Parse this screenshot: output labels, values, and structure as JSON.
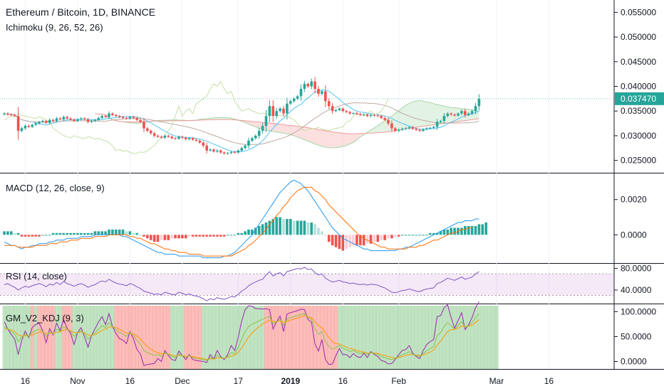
{
  "chart_data": {
    "type": "candlestick",
    "symbol_title": "Ethereum / Bitcoin, 1D, BINANCE",
    "colors": {
      "up": "#26a69a",
      "down": "#ef5350",
      "accent": "#26a69a"
    },
    "time_axis": {
      "ticks": [
        {
          "i": 6,
          "label": "16"
        },
        {
          "i": 21,
          "label": "Nov"
        },
        {
          "i": 36,
          "label": "16"
        },
        {
          "i": 51,
          "label": "Dec"
        },
        {
          "i": 67,
          "label": "17"
        },
        {
          "i": 82,
          "label": "2019"
        },
        {
          "i": 97,
          "label": "16"
        },
        {
          "i": 113,
          "label": "Feb"
        },
        {
          "i": 141,
          "label": "Mar"
        },
        {
          "i": 156,
          "label": "16"
        }
      ]
    },
    "price_panel": {
      "indicator_label": "Ichimoku (9, 26, 52, 26)",
      "ylim": [
        0.0225,
        0.0575
      ],
      "y_ticks": [
        "0.055000",
        "0.050000",
        "0.045000",
        "0.040000",
        "0.035000",
        "0.030000",
        "0.025000"
      ],
      "current_price": "0.037470",
      "close": [
        0.0345,
        0.0343,
        0.0342,
        0.034,
        0.031,
        0.0315,
        0.032,
        0.0318,
        0.0322,
        0.0325,
        0.0328,
        0.033,
        0.0326,
        0.0332,
        0.033,
        0.0335,
        0.0333,
        0.0338,
        0.0335,
        0.0333,
        0.033,
        0.0333,
        0.0335,
        0.0333,
        0.0328,
        0.033,
        0.0332,
        0.0336,
        0.034,
        0.0338,
        0.0345,
        0.0342,
        0.034,
        0.0338,
        0.0336,
        0.0335,
        0.0338,
        0.0336,
        0.0332,
        0.0328,
        0.0315,
        0.031,
        0.0305,
        0.03,
        0.0298,
        0.0296,
        0.03,
        0.0298,
        0.0295,
        0.0294,
        0.0298,
        0.0296,
        0.0293,
        0.0295,
        0.0292,
        0.029,
        0.0286,
        0.028,
        0.027,
        0.0272,
        0.0268,
        0.027,
        0.0266,
        0.0264,
        0.0265,
        0.0267,
        0.0266,
        0.027,
        0.0275,
        0.028,
        0.029,
        0.0295,
        0.03,
        0.031,
        0.032,
        0.034,
        0.036,
        0.034,
        0.035,
        0.0355,
        0.0345,
        0.0365,
        0.037,
        0.0375,
        0.038,
        0.0395,
        0.0405,
        0.04,
        0.041,
        0.0395,
        0.0385,
        0.039,
        0.037,
        0.036,
        0.035,
        0.0352,
        0.0355,
        0.035,
        0.0348,
        0.0345,
        0.0346,
        0.0344,
        0.0342,
        0.0343,
        0.034,
        0.0342,
        0.0341,
        0.034,
        0.0336,
        0.0332,
        0.0325,
        0.0315,
        0.031,
        0.0312,
        0.0314,
        0.0315,
        0.0317,
        0.0314,
        0.0312,
        0.031,
        0.0313,
        0.0315,
        0.0316,
        0.0318,
        0.0328,
        0.033,
        0.034,
        0.0345,
        0.0343,
        0.0341,
        0.0345,
        0.035,
        0.0342,
        0.0345,
        0.035,
        0.036,
        0.0375
      ]
    },
    "macd_panel": {
      "indicator_label": "MACD (12, 26, close, 9)",
      "ylim": [
        -0.0016,
        0.0034
      ],
      "y_ticks": [
        "0.0020",
        "0.0000"
      ],
      "histogram": [
        0.0002,
        0.0002,
        0.0002,
        0.0001,
        0.0001,
        -0.0001,
        -0.0001,
        -0.0001,
        -0.0001,
        -0.0001,
        -0.0001,
        0.0,
        0.0,
        0.0,
        0.0001,
        0.0001,
        0.0001,
        0.0001,
        0.0001,
        0.0001,
        0.0001,
        0.0001,
        0.0001,
        0.0001,
        0.0001,
        0.0001,
        0.0002,
        0.0002,
        0.0002,
        0.0002,
        0.0003,
        0.0003,
        0.0003,
        0.0003,
        0.0003,
        0.0002,
        0.0002,
        0.0001,
        0.0001,
        0.0,
        -0.0001,
        -0.0002,
        -0.0003,
        -0.0004,
        -0.0004,
        -0.0003,
        -0.0003,
        -0.0003,
        -0.0002,
        -0.0002,
        -0.0002,
        -0.0002,
        -0.0002,
        -0.0001,
        -0.0001,
        -0.0001,
        -0.0001,
        -0.0001,
        -0.0001,
        -0.0001,
        -0.0001,
        -0.0001,
        -0.0001,
        -0.0001,
        0.0,
        0.0,
        0.0,
        0.0001,
        0.0001,
        0.0002,
        0.0003,
        0.0003,
        0.0004,
        0.0005,
        0.0006,
        0.0007,
        0.0008,
        0.0009,
        0.001,
        0.001,
        0.0009,
        0.0009,
        0.0009,
        0.0008,
        0.0008,
        0.0008,
        0.0008,
        0.0007,
        0.0007,
        0.0006,
        0.0004,
        0.0002,
        0.0,
        -0.0004,
        -0.0006,
        -0.0007,
        -0.0008,
        -0.0009,
        -0.0008,
        -0.0007,
        -0.0006,
        -0.0006,
        -0.0006,
        -0.0006,
        -0.0005,
        -0.0005,
        -0.0004,
        -0.0004,
        -0.0003,
        -0.0003,
        -0.0002,
        -0.0002,
        -0.0001,
        -0.0001,
        0.0,
        0.0,
        0.0,
        0.0,
        0.0,
        0.0,
        0.0,
        0.0,
        0.0001,
        0.0001,
        0.0001,
        0.0002,
        0.0003,
        0.0003,
        0.0004,
        0.0004,
        0.0004,
        0.0004,
        0.0005,
        0.0005,
        0.0005,
        0.0005,
        0.0006,
        0.0006,
        0.0007
      ],
      "macd": [
        -0.0004,
        -0.0005,
        -0.0006,
        -0.0006,
        -0.0007,
        -0.0008,
        -0.0007,
        -0.0007,
        -0.0006,
        -0.0006,
        -0.0005,
        -0.0005,
        -0.0005,
        -0.0004,
        -0.0004,
        -0.0003,
        -0.0003,
        -0.0003,
        -0.0002,
        -0.0002,
        -0.0002,
        -0.0002,
        -0.0001,
        -0.0001,
        -0.0001,
        -0.0001,
        0.0,
        0.0,
        0.0,
        0.0,
        0.0,
        0.0,
        0.0,
        0.0,
        -0.0001,
        -0.0001,
        -0.0002,
        -0.0003,
        -0.0004,
        -0.0005,
        -0.0006,
        -0.0007,
        -0.0008,
        -0.0009,
        -0.001,
        -0.001,
        -0.0011,
        -0.0011,
        -0.0011,
        -0.0011,
        -0.0012,
        -0.0012,
        -0.0012,
        -0.0012,
        -0.0012,
        -0.0012,
        -0.0012,
        -0.0013,
        -0.0013,
        -0.0013,
        -0.0013,
        -0.0013,
        -0.0013,
        -0.0012,
        -0.0012,
        -0.0011,
        -0.001,
        -0.0008,
        -0.0006,
        -0.0004,
        -0.0002,
        0.0,
        0.0003,
        0.0006,
        0.0009,
        0.0012,
        0.0015,
        0.0018,
        0.0021,
        0.0024,
        0.0026,
        0.0028,
        0.003,
        0.0031,
        0.003,
        0.0029,
        0.0027,
        0.0025,
        0.0022,
        0.0019,
        0.0016,
        0.0013,
        0.001,
        0.0007,
        0.0004,
        0.0002,
        0.0,
        -0.0002,
        -0.0003,
        -0.0004,
        -0.0005,
        -0.0006,
        -0.0007,
        -0.0008,
        -0.0008,
        -0.0009,
        -0.0009,
        -0.0009,
        -0.0009,
        -0.0009,
        -0.0009,
        -0.0009,
        -0.0009,
        -0.0008,
        -0.0008,
        -0.0007,
        -0.0007,
        -0.0006,
        -0.0005,
        -0.0004,
        -0.0003,
        -0.0002,
        -0.0001,
        0.0,
        0.0001,
        0.0002,
        0.0003,
        0.0004,
        0.0005,
        0.0006,
        0.0007,
        0.0007,
        0.0008,
        0.0008,
        0.0008,
        0.0009,
        0.0009
      ],
      "signal": [
        -0.0006,
        -0.0006,
        -0.0006,
        -0.0006,
        -0.0007,
        -0.0007,
        -0.0007,
        -0.0007,
        -0.0007,
        -0.0006,
        -0.0006,
        -0.0006,
        -0.0006,
        -0.0005,
        -0.0005,
        -0.0005,
        -0.0004,
        -0.0004,
        -0.0004,
        -0.0003,
        -0.0003,
        -0.0003,
        -0.0002,
        -0.0002,
        -0.0002,
        -0.0002,
        -0.0001,
        -0.0001,
        -0.0001,
        -0.0001,
        0.0,
        0.0,
        0.0,
        0.0,
        0.0,
        0.0,
        -0.0001,
        -0.0001,
        -0.0002,
        -0.0002,
        -0.0003,
        -0.0004,
        -0.0005,
        -0.0005,
        -0.0006,
        -0.0007,
        -0.0008,
        -0.0008,
        -0.0009,
        -0.0009,
        -0.001,
        -0.001,
        -0.001,
        -0.0011,
        -0.0011,
        -0.0011,
        -0.0011,
        -0.0012,
        -0.0012,
        -0.0012,
        -0.0012,
        -0.0012,
        -0.0012,
        -0.0012,
        -0.0012,
        -0.0012,
        -0.0011,
        -0.001,
        -0.0009,
        -0.0008,
        -0.0006,
        -0.0005,
        -0.0003,
        -0.0001,
        0.0001,
        0.0003,
        0.0006,
        0.0008,
        0.0011,
        0.0013,
        0.0016,
        0.0018,
        0.0021,
        0.0023,
        0.0025,
        0.0026,
        0.0027,
        0.0027,
        0.0027,
        0.0025,
        0.0024,
        0.0022,
        0.002,
        0.0017,
        0.0015,
        0.0013,
        0.0011,
        0.0009,
        0.0007,
        0.0005,
        0.0003,
        0.0001,
        -0.0001,
        -0.0002,
        -0.0003,
        -0.0004,
        -0.0005,
        -0.0006,
        -0.0007,
        -0.0007,
        -0.0008,
        -0.0008,
        -0.0008,
        -0.0008,
        -0.0008,
        -0.0008,
        -0.0007,
        -0.0007,
        -0.0007,
        -0.0006,
        -0.0006,
        -0.0005,
        -0.0004,
        -0.0003,
        -0.0003,
        -0.0002,
        -0.0001,
        0.0,
        0.0001,
        0.0001,
        0.0002,
        0.0003,
        0.0003,
        0.0004,
        0.0004
      ]
    },
    "rsi_panel": {
      "indicator_label": "RSI (14, close)",
      "ylim": [
        15,
        86
      ],
      "band": [
        30,
        70
      ],
      "y_ticks": [
        "80.0000",
        "40.0000"
      ],
      "values": [
        50,
        52,
        48,
        45,
        40,
        44,
        47,
        45,
        48,
        50,
        52,
        50,
        46,
        51,
        49,
        54,
        50,
        56,
        52,
        50,
        47,
        50,
        52,
        49,
        45,
        48,
        50,
        54,
        57,
        55,
        60,
        56,
        53,
        51,
        50,
        48,
        52,
        50,
        46,
        43,
        38,
        36,
        34,
        32,
        33,
        31,
        36,
        34,
        32,
        31,
        36,
        34,
        31,
        33,
        30,
        29,
        27,
        24,
        20,
        24,
        22,
        26,
        24,
        23,
        25,
        28,
        27,
        32,
        38,
        42,
        48,
        52,
        55,
        58,
        60,
        68,
        74,
        66,
        70,
        72,
        66,
        74,
        76,
        78,
        80,
        79,
        82,
        78,
        79,
        72,
        68,
        70,
        62,
        58,
        55,
        56,
        58,
        55,
        54,
        52,
        53,
        51,
        50,
        51,
        49,
        51,
        50,
        49,
        46,
        44,
        40,
        36,
        35,
        37,
        39,
        40,
        42,
        40,
        38,
        37,
        40,
        42,
        43,
        44,
        52,
        54,
        58,
        62,
        60,
        58,
        61,
        64,
        60,
        62,
        64,
        70,
        74
      ]
    },
    "kdj_panel": {
      "indicator_label": "GM_V2_KDJ (9, 3)",
      "ylim": [
        -15,
        112
      ],
      "y_ticks": [
        "100.0000",
        "50.0000",
        "0.0000"
      ],
      "regime": [
        "green",
        "green",
        "green",
        "green",
        "green",
        "green",
        "green",
        "green",
        "red",
        "green",
        "red",
        "red",
        "red",
        "red",
        "red",
        "green",
        "green",
        "red",
        "red",
        "red",
        "green",
        "green",
        "green",
        "green",
        "green",
        "green",
        "green",
        "green",
        "green",
        "green",
        "green",
        "green",
        "red",
        "red",
        "red",
        "red",
        "red",
        "red",
        "red",
        "red",
        "red",
        "red",
        "red",
        "red",
        "red",
        "red",
        "red",
        "red",
        "green",
        "green",
        "green",
        "green",
        "red",
        "red",
        "red",
        "red",
        "red",
        "green",
        "green",
        "green",
        "green",
        "green",
        "green",
        "green",
        "green",
        "green",
        "green",
        "green",
        "green",
        "green",
        "green",
        "green",
        "green",
        "green",
        "green",
        "red",
        "red",
        "red",
        "red",
        "red",
        "red",
        "red",
        "red",
        "red",
        "red",
        "red",
        "red",
        "red",
        "red",
        "red",
        "red",
        "red",
        "red",
        "red",
        "red",
        "red",
        "green",
        "green",
        "green",
        "green",
        "green",
        "green",
        "green",
        "green",
        "green",
        "green",
        "green",
        "green",
        "green",
        "green",
        "green",
        "green",
        "green",
        "green",
        "green",
        "green",
        "green",
        "green",
        "green",
        "green",
        "green",
        "green",
        "green",
        "green",
        "green",
        "green",
        "green",
        "green",
        "green",
        "green",
        "green",
        "green",
        "green",
        "green",
        "green",
        "green",
        "green",
        "green",
        "green",
        "green",
        "green",
        "green"
      ],
      "k": [
        70,
        65,
        60,
        55,
        40,
        48,
        55,
        50,
        58,
        62,
        65,
        60,
        50,
        60,
        55,
        65,
        60,
        70,
        65,
        60,
        50,
        58,
        62,
        55,
        45,
        52,
        58,
        65,
        72,
        68,
        78,
        70,
        64,
        58,
        55,
        50,
        58,
        52,
        42,
        35,
        22,
        18,
        15,
        12,
        14,
        10,
        18,
        14,
        10,
        8,
        15,
        12,
        8,
        12,
        8,
        6,
        5,
        4,
        2,
        8,
        5,
        12,
        8,
        6,
        10,
        18,
        16,
        28,
        45,
        60,
        70,
        75,
        78,
        82,
        85,
        88,
        90,
        75,
        80,
        85,
        72,
        85,
        88,
        90,
        92,
        95,
        96,
        88,
        85,
        65,
        55,
        60,
        40,
        30,
        25,
        28,
        32,
        26,
        24,
        20,
        22,
        18,
        16,
        18,
        14,
        18,
        16,
        14,
        10,
        8,
        5,
        4,
        6,
        10,
        14,
        16,
        20,
        15,
        12,
        10,
        16,
        22,
        26,
        30,
        52,
        58,
        70,
        78,
        72,
        65,
        72,
        80,
        68,
        72,
        78,
        88,
        96
      ],
      "d": [
        65,
        65,
        63,
        60,
        53,
        51,
        52,
        51,
        53,
        56,
        59,
        59,
        56,
        57,
        56,
        59,
        59,
        63,
        64,
        62,
        58,
        58,
        59,
        58,
        53,
        52,
        54,
        58,
        63,
        65,
        69,
        70,
        68,
        64,
        61,
        57,
        57,
        55,
        51,
        45,
        37,
        30,
        25,
        20,
        18,
        15,
        16,
        15,
        13,
        11,
        12,
        12,
        10,
        11,
        10,
        8,
        7,
        6,
        4,
        5,
        5,
        7,
        7,
        7,
        8,
        11,
        13,
        18,
        27,
        38,
        49,
        57,
        64,
        70,
        75,
        79,
        83,
        80,
        80,
        82,
        78,
        80,
        83,
        85,
        87,
        90,
        92,
        90,
        88,
        80,
        72,
        68,
        58,
        48,
        40,
        36,
        35,
        32,
        29,
        26,
        25,
        22,
        20,
        19,
        17,
        17,
        17,
        16,
        14,
        12,
        10,
        8,
        7,
        8,
        10,
        12,
        14,
        14,
        13,
        12,
        13,
        16,
        19,
        23,
        33,
        41,
        51,
        60,
        64,
        64,
        67,
        71,
        70,
        71,
        73,
        78,
        84
      ],
      "j": [
        80,
        65,
        54,
        45,
        14,
        42,
        61,
        48,
        68,
        74,
        77,
        62,
        38,
        66,
        53,
        77,
        62,
        84,
        67,
        56,
        34,
        58,
        68,
        49,
        29,
        52,
        66,
        79,
        90,
        74,
        96,
        70,
        56,
        46,
        43,
        36,
        60,
        46,
        24,
        15,
        -8,
        -6,
        -5,
        -4,
        6,
        0,
        22,
        12,
        4,
        2,
        21,
        12,
        4,
        14,
        4,
        2,
        1,
        0,
        -2,
        14,
        5,
        22,
        10,
        4,
        14,
        32,
        22,
        48,
        81,
        104,
        112,
        111,
        106,
        106,
        105,
        106,
        104,
        65,
        80,
        91,
        60,
        95,
        98,
        100,
        102,
        105,
        104,
        84,
        79,
        35,
        21,
        44,
        4,
        -6,
        -5,
        12,
        26,
        14,
        14,
        8,
        16,
        10,
        8,
        16,
        8,
        20,
        14,
        10,
        2,
        0,
        -5,
        -4,
        4,
        14,
        22,
        24,
        32,
        17,
        10,
        6,
        22,
        34,
        40,
        44,
        90,
        92,
        108,
        114,
        88,
        67,
        82,
        98,
        64,
        74,
        88,
        108,
        120
      ]
    }
  }
}
